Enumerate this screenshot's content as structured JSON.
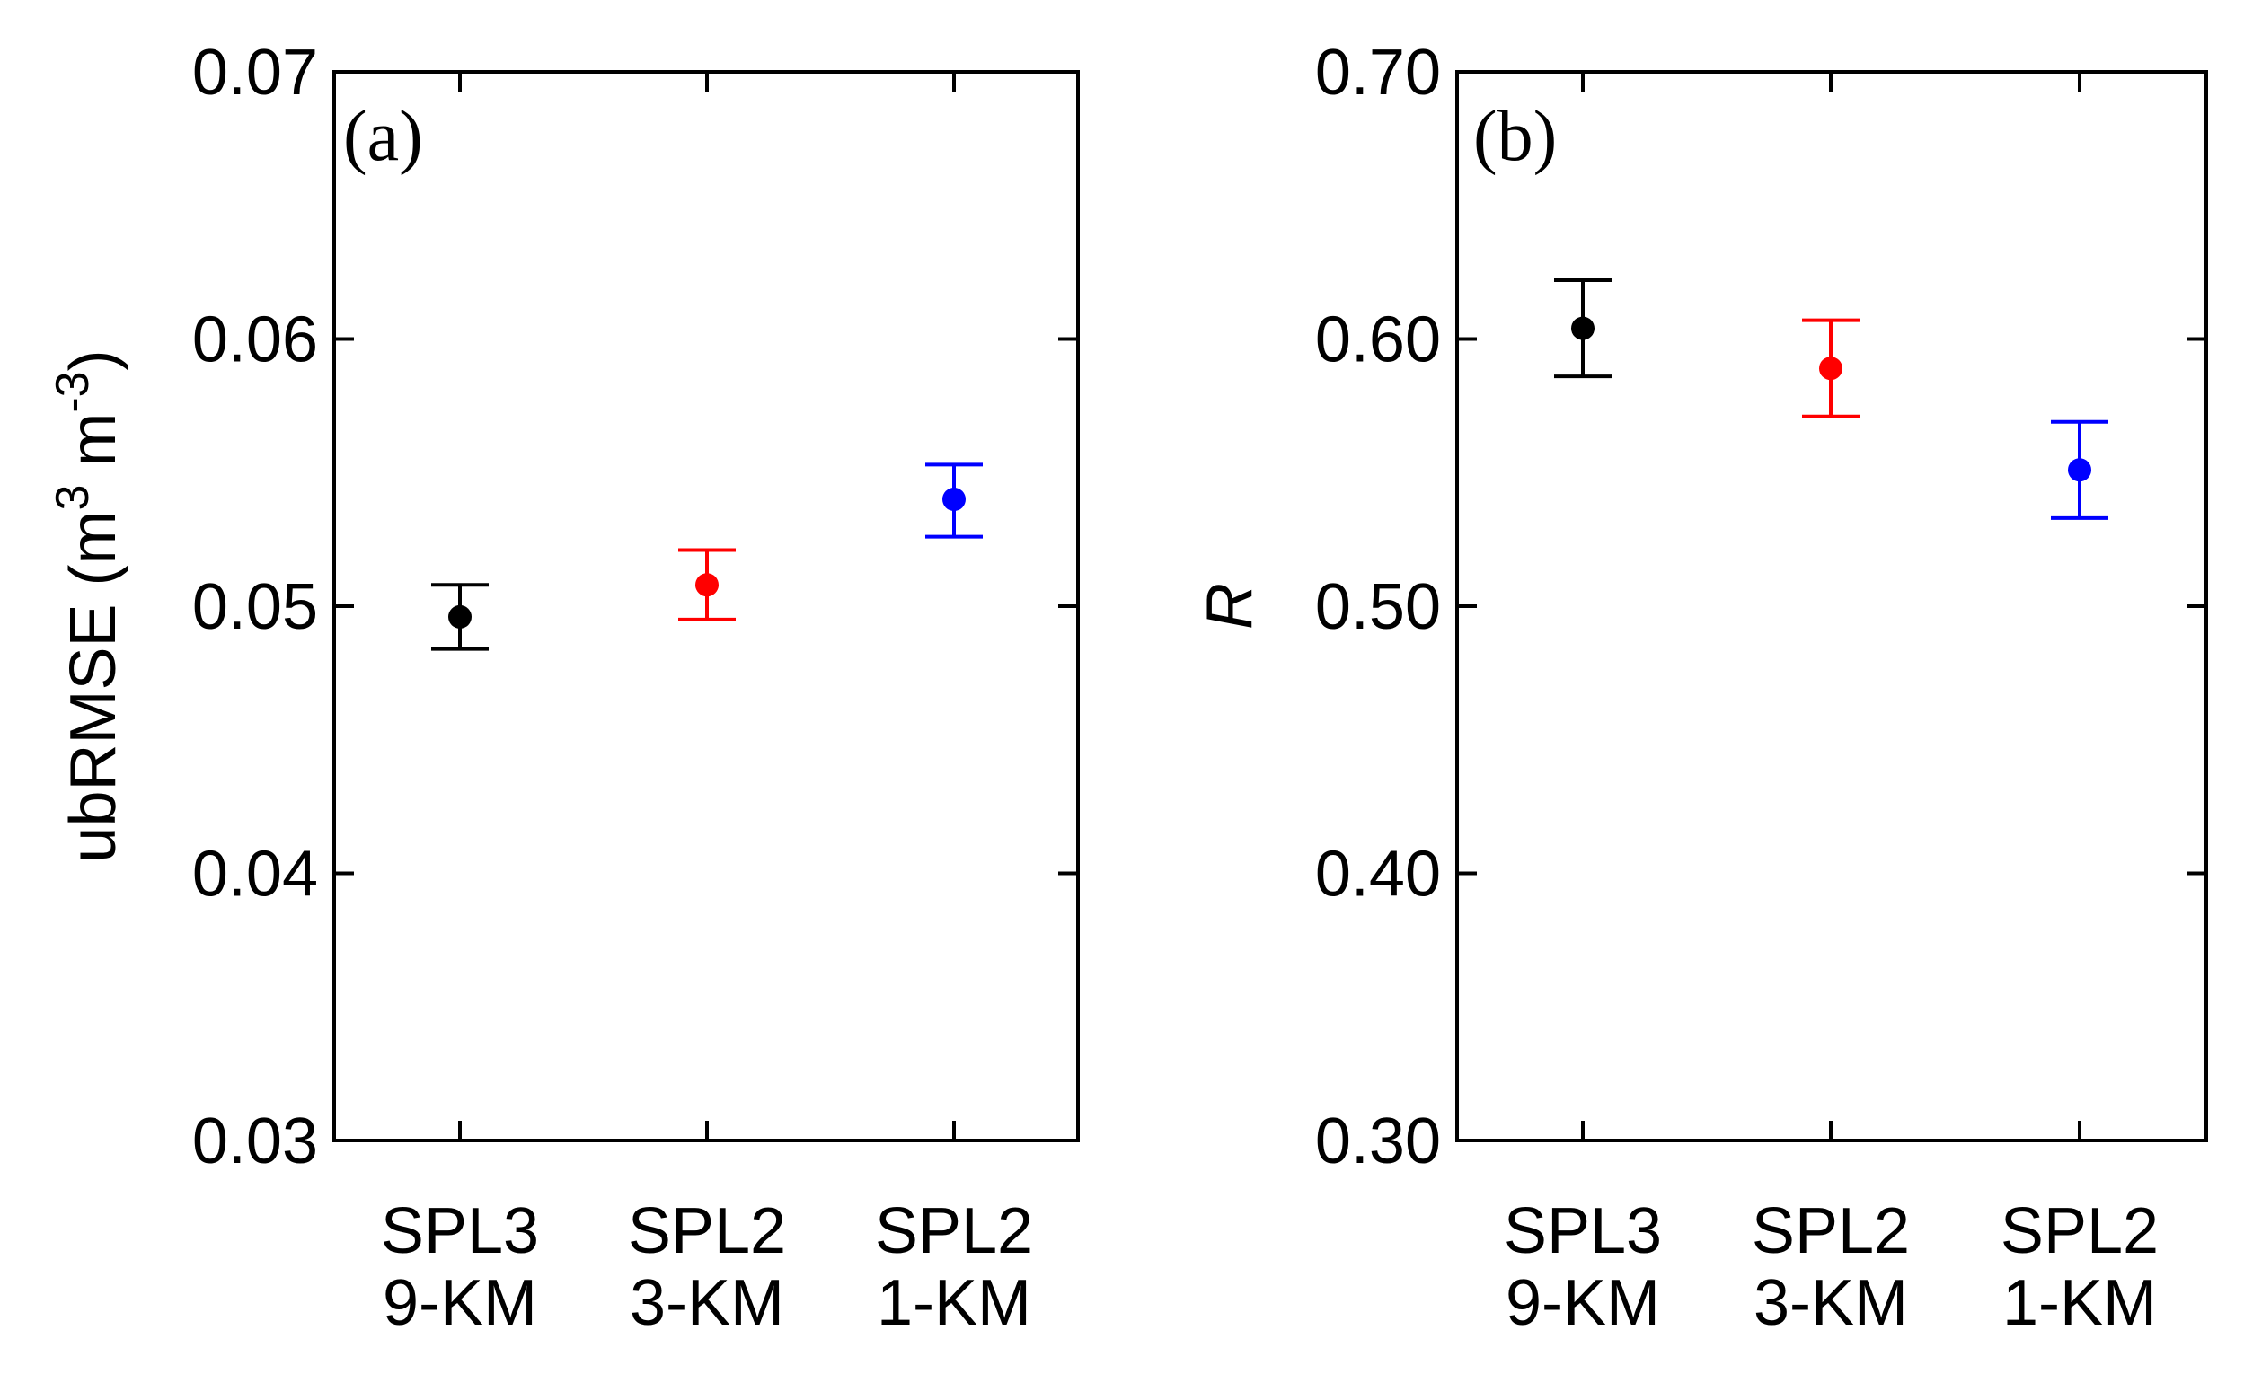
{
  "chart_data": [
    {
      "type": "scatter",
      "panel": "(a)",
      "ylabel_text": "ubRMSE (m",
      "ylabel_sup1": "3",
      "ylabel_mid": " m",
      "ylabel_sup2": "-3",
      "ylabel_end": ")",
      "ylim": [
        0.03,
        0.07
      ],
      "yticks": [
        "0.03",
        "0.04",
        "0.05",
        "0.06",
        "0.07"
      ],
      "yticks_values": [
        0.03,
        0.04,
        0.05,
        0.06,
        0.07
      ],
      "categories": [
        {
          "line1": "SPL3",
          "line2": "9-KM"
        },
        {
          "line1": "SPL2",
          "line2": "3-KM"
        },
        {
          "line1": "SPL2",
          "line2": "1-KM"
        }
      ],
      "points": [
        {
          "value": 0.0496,
          "low": 0.0484,
          "high": 0.0508,
          "color": "#000000"
        },
        {
          "value": 0.0508,
          "low": 0.0495,
          "high": 0.0521,
          "color": "#ff0000"
        },
        {
          "value": 0.054,
          "low": 0.0526,
          "high": 0.0553,
          "color": "#0000ff"
        }
      ]
    },
    {
      "type": "scatter",
      "panel": "(b)",
      "ylabel_text": "R",
      "ylim": [
        0.3,
        0.7
      ],
      "yticks": [
        "0.30",
        "0.40",
        "0.50",
        "0.60",
        "0.70"
      ],
      "yticks_values": [
        0.3,
        0.4,
        0.5,
        0.6,
        0.7
      ],
      "categories": [
        {
          "line1": "SPL3",
          "line2": "9-KM"
        },
        {
          "line1": "SPL2",
          "line2": "3-KM"
        },
        {
          "line1": "SPL2",
          "line2": "1-KM"
        }
      ],
      "points": [
        {
          "value": 0.604,
          "low": 0.586,
          "high": 0.622,
          "color": "#000000"
        },
        {
          "value": 0.589,
          "low": 0.571,
          "high": 0.607,
          "color": "#ff0000"
        },
        {
          "value": 0.551,
          "low": 0.533,
          "high": 0.569,
          "color": "#0000ff"
        }
      ]
    }
  ]
}
